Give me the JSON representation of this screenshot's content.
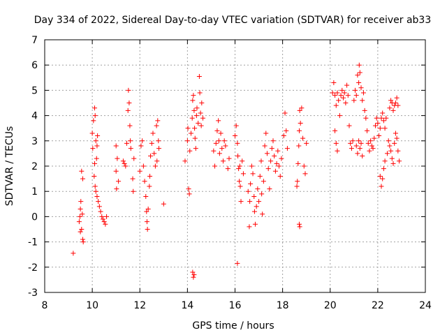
{
  "chart_data": {
    "type": "scatter",
    "title": "Day 334 of 2022, Sidereal Day-to-day VTEC variation (SDTVAR) for receiver ab33",
    "xlabel": "GPS time / hours",
    "ylabel": "SDTVAR / TECUs",
    "xlim": [
      8,
      24
    ],
    "ylim": [
      -3,
      7
    ],
    "x_ticks": [
      "8",
      "10",
      "12",
      "14",
      "16",
      "18",
      "20",
      "22",
      "24"
    ],
    "y_ticks": [
      "-3",
      "-2",
      "-1",
      "0",
      "1",
      "2",
      "3",
      "4",
      "5",
      "6",
      "7"
    ],
    "grid": true,
    "marker": "+",
    "color": "#ff0000",
    "series": [
      {
        "name": "SDTVAR",
        "points": [
          [
            9.2,
            -1.45
          ],
          [
            9.45,
            -0.2
          ],
          [
            9.5,
            0.3
          ],
          [
            9.52,
            0.6
          ],
          [
            9.55,
            -0.5
          ],
          [
            9.6,
            -0.9
          ],
          [
            9.62,
            -1.0
          ],
          [
            9.58,
            0.1
          ],
          [
            9.55,
            1.8
          ],
          [
            9.6,
            1.5
          ],
          [
            9.5,
            -0.6
          ],
          [
            9.48,
            0.0
          ],
          [
            10.0,
            3.3
          ],
          [
            10.05,
            3.8
          ],
          [
            10.1,
            4.3
          ],
          [
            10.12,
            4.0
          ],
          [
            10.15,
            3.0
          ],
          [
            10.18,
            2.3
          ],
          [
            10.2,
            2.8
          ],
          [
            10.08,
            1.6
          ],
          [
            10.12,
            1.2
          ],
          [
            10.2,
            0.8
          ],
          [
            10.25,
            0.6
          ],
          [
            10.3,
            0.4
          ],
          [
            10.35,
            0.2
          ],
          [
            10.4,
            0.0
          ],
          [
            10.45,
            -0.1
          ],
          [
            10.5,
            -0.2
          ],
          [
            10.55,
            -0.3
          ],
          [
            10.6,
            0.0
          ],
          [
            10.22,
            3.2
          ],
          [
            10.02,
            2.7
          ],
          [
            10.1,
            2.1
          ],
          [
            10.15,
            1.0
          ],
          [
            11.0,
            2.8
          ],
          [
            11.05,
            2.3
          ],
          [
            11.0,
            1.8
          ],
          [
            11.1,
            1.4
          ],
          [
            11.02,
            1.1
          ],
          [
            11.3,
            2.2
          ],
          [
            11.35,
            2.1
          ],
          [
            11.4,
            2.0
          ],
          [
            11.45,
            2.9
          ],
          [
            11.5,
            4.2
          ],
          [
            11.52,
            5.0
          ],
          [
            11.55,
            4.5
          ],
          [
            11.58,
            3.6
          ],
          [
            11.6,
            3.0
          ],
          [
            11.62,
            2.7
          ],
          [
            11.7,
            1.5
          ],
          [
            11.72,
            1.0
          ],
          [
            11.75,
            2.3
          ],
          [
            12.0,
            1.8
          ],
          [
            12.05,
            2.8
          ],
          [
            12.1,
            3.0
          ],
          [
            12.15,
            2.0
          ],
          [
            12.2,
            1.4
          ],
          [
            12.25,
            0.8
          ],
          [
            12.28,
            0.2
          ],
          [
            12.3,
            -0.2
          ],
          [
            12.32,
            -0.5
          ],
          [
            12.35,
            0.3
          ],
          [
            12.4,
            1.2
          ],
          [
            12.42,
            1.6
          ],
          [
            12.45,
            2.4
          ],
          [
            12.5,
            2.9
          ],
          [
            12.55,
            3.3
          ],
          [
            12.6,
            2.5
          ],
          [
            12.65,
            2.0
          ],
          [
            12.7,
            3.6
          ],
          [
            12.75,
            3.8
          ],
          [
            12.72,
            2.2
          ],
          [
            12.78,
            3.0
          ],
          [
            12.8,
            2.7
          ],
          [
            13.0,
            0.5
          ],
          [
            13.9,
            2.2
          ],
          [
            14.0,
            3.0
          ],
          [
            14.02,
            3.5
          ],
          [
            14.05,
            1.1
          ],
          [
            14.08,
            0.9
          ],
          [
            14.1,
            2.6
          ],
          [
            14.15,
            3.3
          ],
          [
            14.2,
            3.9
          ],
          [
            14.22,
            4.6
          ],
          [
            14.25,
            4.8
          ],
          [
            14.28,
            4.2
          ],
          [
            14.3,
            3.5
          ],
          [
            14.32,
            3.1
          ],
          [
            14.35,
            2.7
          ],
          [
            14.38,
            4.0
          ],
          [
            14.4,
            4.3
          ],
          [
            14.45,
            3.7
          ],
          [
            14.5,
            5.55
          ],
          [
            14.52,
            4.9
          ],
          [
            14.55,
            4.1
          ],
          [
            14.58,
            3.6
          ],
          [
            14.6,
            4.5
          ],
          [
            14.65,
            3.9
          ],
          [
            14.22,
            -2.2
          ],
          [
            14.25,
            -2.4
          ],
          [
            14.28,
            -2.3
          ],
          [
            15.1,
            2.6
          ],
          [
            15.15,
            2.0
          ],
          [
            15.2,
            2.9
          ],
          [
            15.25,
            3.4
          ],
          [
            15.3,
            3.8
          ],
          [
            15.32,
            3.0
          ],
          [
            15.35,
            2.5
          ],
          [
            15.4,
            3.3
          ],
          [
            15.45,
            2.7
          ],
          [
            15.5,
            2.2
          ],
          [
            15.55,
            3.0
          ],
          [
            15.6,
            2.8
          ],
          [
            15.7,
            1.9
          ],
          [
            15.75,
            2.3
          ],
          [
            16.0,
            3.2
          ],
          [
            16.05,
            3.6
          ],
          [
            16.1,
            2.9
          ],
          [
            16.12,
            2.4
          ],
          [
            16.15,
            1.9
          ],
          [
            16.18,
            1.4
          ],
          [
            16.2,
            2.0
          ],
          [
            16.22,
            1.2
          ],
          [
            16.25,
            0.6
          ],
          [
            16.1,
            -1.85
          ],
          [
            16.3,
            2.2
          ],
          [
            16.35,
            1.7
          ],
          [
            16.55,
            1.0
          ],
          [
            16.6,
            -0.4
          ],
          [
            16.62,
            0.6
          ],
          [
            16.65,
            1.3
          ],
          [
            16.7,
            2.0
          ],
          [
            16.75,
            1.7
          ],
          [
            16.8,
            0.8
          ],
          [
            16.82,
            0.2
          ],
          [
            16.85,
            -0.3
          ],
          [
            16.9,
            0.4
          ],
          [
            16.95,
            1.1
          ],
          [
            17.0,
            0.6
          ],
          [
            17.05,
            1.6
          ],
          [
            17.1,
            2.2
          ],
          [
            17.12,
            0.9
          ],
          [
            17.15,
            0.1
          ],
          [
            17.2,
            1.4
          ],
          [
            17.25,
            2.8
          ],
          [
            17.3,
            3.3
          ],
          [
            17.35,
            2.5
          ],
          [
            17.4,
            1.9
          ],
          [
            17.45,
            1.1
          ],
          [
            17.5,
            2.2
          ],
          [
            17.55,
            2.7
          ],
          [
            17.6,
            3.0
          ],
          [
            17.65,
            2.4
          ],
          [
            17.7,
            1.8
          ],
          [
            17.75,
            2.1
          ],
          [
            17.8,
            2.6
          ],
          [
            17.85,
            2.0
          ],
          [
            17.9,
            1.6
          ],
          [
            17.95,
            2.3
          ],
          [
            18.05,
            3.2
          ],
          [
            18.1,
            4.1
          ],
          [
            18.15,
            3.4
          ],
          [
            18.2,
            2.7
          ],
          [
            18.6,
            1.2
          ],
          [
            18.62,
            1.4
          ],
          [
            18.65,
            2.1
          ],
          [
            18.68,
            2.8
          ],
          [
            18.7,
            3.4
          ],
          [
            18.72,
            4.2
          ],
          [
            18.75,
            3.7
          ],
          [
            18.7,
            -0.3
          ],
          [
            18.72,
            -0.4
          ],
          [
            18.8,
            4.3
          ],
          [
            18.85,
            3.1
          ],
          [
            18.9,
            2.0
          ],
          [
            18.95,
            1.7
          ],
          [
            19.0,
            2.9
          ],
          [
            20.1,
            4.9
          ],
          [
            20.15,
            5.3
          ],
          [
            20.2,
            4.8
          ],
          [
            20.25,
            4.4
          ],
          [
            20.3,
            4.9
          ],
          [
            20.35,
            4.6
          ],
          [
            20.4,
            4.0
          ],
          [
            20.2,
            3.4
          ],
          [
            20.25,
            2.9
          ],
          [
            20.3,
            2.6
          ],
          [
            20.45,
            4.8
          ],
          [
            20.5,
            5.0
          ],
          [
            20.55,
            4.7
          ],
          [
            20.6,
            4.9
          ],
          [
            20.65,
            4.5
          ],
          [
            20.7,
            5.2
          ],
          [
            20.75,
            4.8
          ],
          [
            20.8,
            3.6
          ],
          [
            20.85,
            2.9
          ],
          [
            20.9,
            2.7
          ],
          [
            20.95,
            3.0
          ],
          [
            21.0,
            4.6
          ],
          [
            21.05,
            5.0
          ],
          [
            21.1,
            4.8
          ],
          [
            21.15,
            5.6
          ],
          [
            21.2,
            5.3
          ],
          [
            21.22,
            6.0
          ],
          [
            21.25,
            5.7
          ],
          [
            21.3,
            5.1
          ],
          [
            21.35,
            4.6
          ],
          [
            21.4,
            4.9
          ],
          [
            21.1,
            2.8
          ],
          [
            21.15,
            2.5
          ],
          [
            21.2,
            3.0
          ],
          [
            21.25,
            2.7
          ],
          [
            21.3,
            2.9
          ],
          [
            21.35,
            2.4
          ],
          [
            21.45,
            4.2
          ],
          [
            21.5,
            3.9
          ],
          [
            21.55,
            3.4
          ],
          [
            21.6,
            2.9
          ],
          [
            21.65,
            2.6
          ],
          [
            21.7,
            3.0
          ],
          [
            21.75,
            2.8
          ],
          [
            21.8,
            2.7
          ],
          [
            21.85,
            3.1
          ],
          [
            21.9,
            3.6
          ],
          [
            21.95,
            3.9
          ],
          [
            22.0,
            3.7
          ],
          [
            22.05,
            3.2
          ],
          [
            22.1,
            3.5
          ],
          [
            22.15,
            3.9
          ],
          [
            22.2,
            4.1
          ],
          [
            22.25,
            3.8
          ],
          [
            22.3,
            3.5
          ],
          [
            22.35,
            3.9
          ],
          [
            22.1,
            1.6
          ],
          [
            22.15,
            1.2
          ],
          [
            22.2,
            1.5
          ],
          [
            22.25,
            1.9
          ],
          [
            22.3,
            2.2
          ],
          [
            22.4,
            2.5
          ],
          [
            22.45,
            3.0
          ],
          [
            22.5,
            4.3
          ],
          [
            22.55,
            4.6
          ],
          [
            22.6,
            4.5
          ],
          [
            22.65,
            4.2
          ],
          [
            22.7,
            4.4
          ],
          [
            22.75,
            4.5
          ],
          [
            22.8,
            4.7
          ],
          [
            22.85,
            4.4
          ],
          [
            22.5,
            2.8
          ],
          [
            22.55,
            2.6
          ],
          [
            22.6,
            2.3
          ],
          [
            22.65,
            2.1
          ],
          [
            22.7,
            2.9
          ],
          [
            22.75,
            3.3
          ],
          [
            22.8,
            3.1
          ],
          [
            22.85,
            2.6
          ],
          [
            22.9,
            2.2
          ]
        ]
      }
    ]
  }
}
